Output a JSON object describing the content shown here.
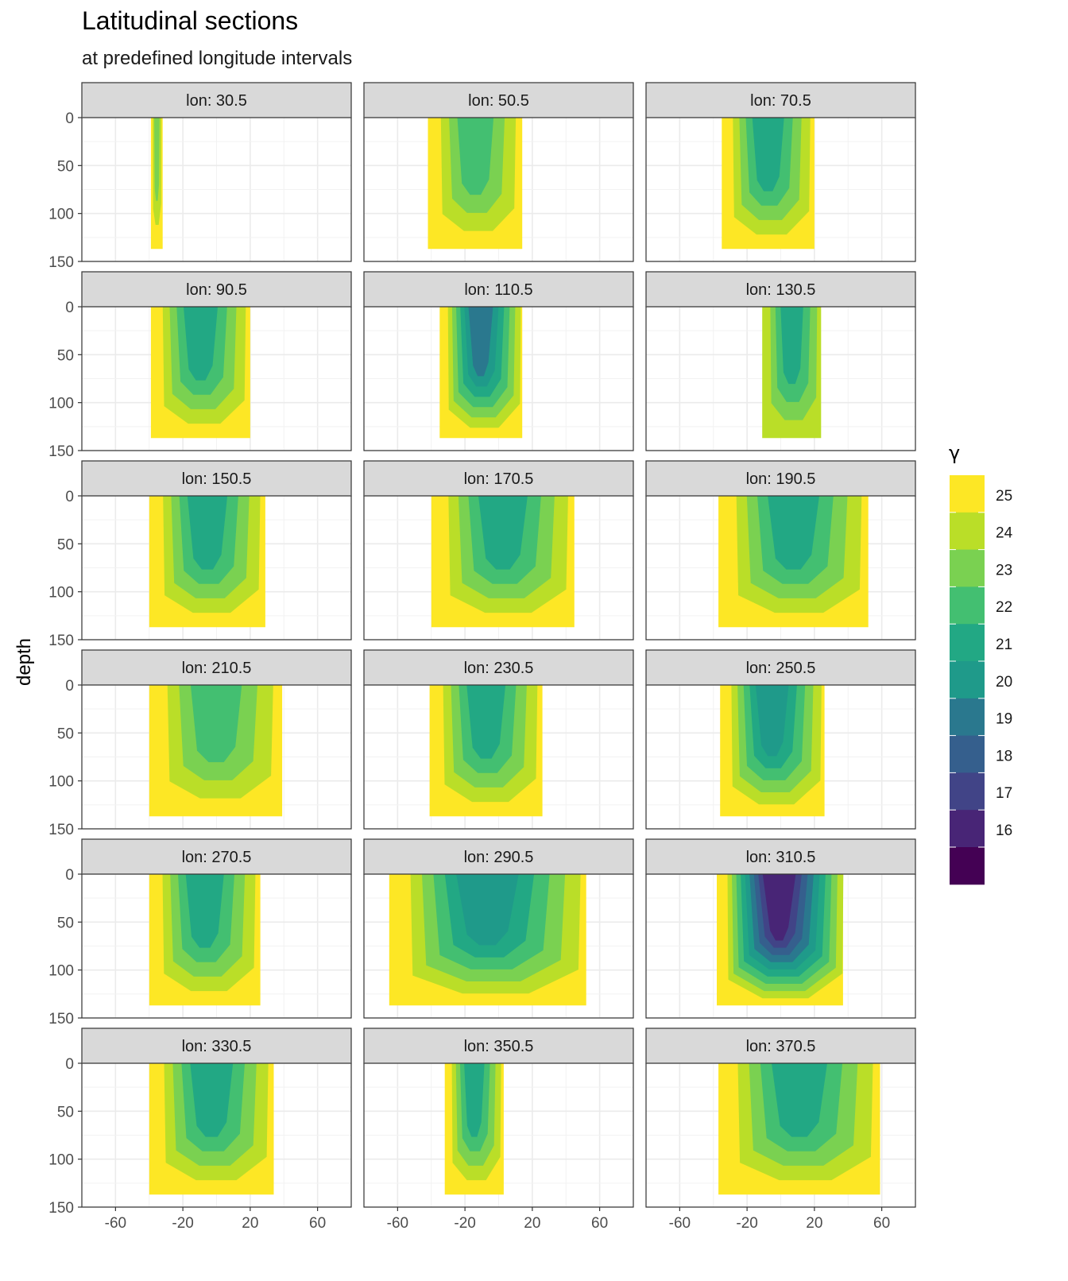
{
  "header": {
    "title": "Latitudinal sections",
    "subtitle": "at predefined longitude intervals"
  },
  "chart_data": {
    "type": "contour",
    "title": "Latitudinal sections",
    "subtitle": "at predefined longitude intervals",
    "ylabel": "depth",
    "xlabel": "",
    "x_ticks": [
      -60,
      -20,
      20,
      60
    ],
    "y_ticks": [
      0,
      50,
      100,
      150
    ],
    "xlim": [
      -80,
      80
    ],
    "ylim": [
      150,
      0
    ],
    "grid": true,
    "facet_prefix": "lon: ",
    "facets": [
      30.5,
      50.5,
      70.5,
      90.5,
      110.5,
      130.5,
      150.5,
      170.5,
      190.5,
      210.5,
      230.5,
      250.5,
      270.5,
      290.5,
      310.5,
      330.5,
      350.5,
      370.5
    ],
    "legend": {
      "title": "γ",
      "position": "right",
      "levels": [
        "25",
        "24",
        "23",
        "22",
        "21",
        "20",
        "19",
        "18",
        "17",
        "16"
      ],
      "colors": [
        "#FDE725",
        "#BADE28",
        "#7AD151",
        "#43BF71",
        "#22A884",
        "#1F9A8A",
        "#2A788E",
        "#355F8D",
        "#414487",
        "#482576",
        "#440154"
      ]
    },
    "sections": [
      {
        "lon": 30.5,
        "lat_range": [
          -39,
          -32
        ],
        "max_depth": 137,
        "bands": [
          25,
          24,
          23
        ]
      },
      {
        "lon": 50.5,
        "lat_range": [
          -42,
          14
        ],
        "max_depth": 137,
        "bands": [
          25,
          24,
          23,
          22
        ]
      },
      {
        "lon": 70.5,
        "lat_range": [
          -35,
          20
        ],
        "max_depth": 137,
        "bands": [
          25,
          24,
          23,
          22,
          21
        ]
      },
      {
        "lon": 90.5,
        "lat_range": [
          -39,
          20
        ],
        "max_depth": 137,
        "bands": [
          25,
          24,
          23,
          22,
          21
        ]
      },
      {
        "lon": 110.5,
        "lat_range": [
          -35,
          14
        ],
        "max_depth": 137,
        "bands": [
          25,
          24,
          23,
          22,
          21,
          20,
          19
        ]
      },
      {
        "lon": 130.5,
        "lat_range": [
          -11,
          24
        ],
        "max_depth": 137,
        "bands": [
          24,
          23,
          22,
          21
        ]
      },
      {
        "lon": 150.5,
        "lat_range": [
          -40,
          29
        ],
        "max_depth": 137,
        "bands": [
          25,
          24,
          23,
          22,
          21
        ]
      },
      {
        "lon": 170.5,
        "lat_range": [
          -40,
          45
        ],
        "max_depth": 137,
        "bands": [
          25,
          24,
          23,
          22,
          21
        ]
      },
      {
        "lon": 190.5,
        "lat_range": [
          -37,
          52
        ],
        "max_depth": 137,
        "bands": [
          25,
          24,
          23,
          22,
          21
        ]
      },
      {
        "lon": 210.5,
        "lat_range": [
          -40,
          39
        ],
        "max_depth": 137,
        "bands": [
          25,
          24,
          23,
          22
        ]
      },
      {
        "lon": 230.5,
        "lat_range": [
          -41,
          26
        ],
        "max_depth": 137,
        "bands": [
          25,
          24,
          23,
          22,
          21
        ]
      },
      {
        "lon": 250.5,
        "lat_range": [
          -36,
          26
        ],
        "max_depth": 137,
        "bands": [
          25,
          24,
          23,
          22,
          21,
          20
        ]
      },
      {
        "lon": 270.5,
        "lat_range": [
          -40,
          26
        ],
        "max_depth": 137,
        "bands": [
          25,
          24,
          23,
          22,
          21
        ]
      },
      {
        "lon": 290.5,
        "lat_range": [
          -65,
          52
        ],
        "max_depth": 137,
        "bands": [
          25,
          24,
          23,
          22,
          21,
          20
        ]
      },
      {
        "lon": 310.5,
        "lat_range": [
          -38,
          37
        ],
        "max_depth": 137,
        "bands": [
          25,
          24,
          23,
          22,
          21,
          20,
          19,
          18,
          17,
          16
        ]
      },
      {
        "lon": 330.5,
        "lat_range": [
          -40,
          34
        ],
        "max_depth": 137,
        "bands": [
          25,
          24,
          23,
          22,
          21
        ]
      },
      {
        "lon": 350.5,
        "lat_range": [
          -32,
          3
        ],
        "max_depth": 137,
        "bands": [
          25,
          24,
          23,
          22,
          21
        ]
      },
      {
        "lon": 370.5,
        "lat_range": [
          -37,
          59
        ],
        "max_depth": 137,
        "bands": [
          25,
          24,
          23,
          22,
          21
        ]
      }
    ]
  }
}
